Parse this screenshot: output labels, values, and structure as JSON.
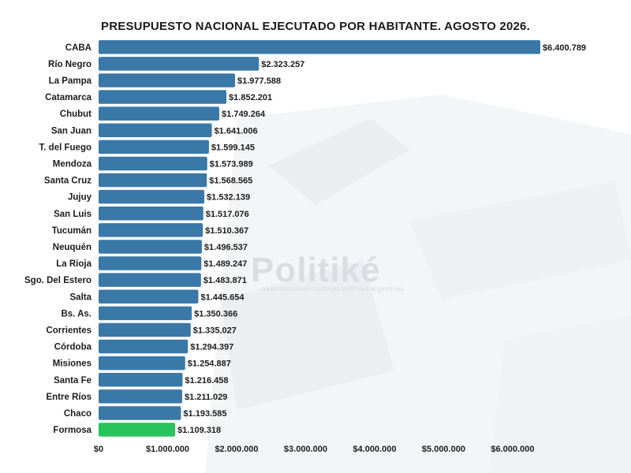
{
  "chart_data": {
    "type": "bar",
    "orientation": "horizontal",
    "title": "PRESUPUESTO NACIONAL EJECUTADO POR HABITANTE. AGOSTO 2026.",
    "xlabel": "",
    "ylabel": "",
    "xlim": [
      0,
      6400789
    ],
    "grid": false,
    "bar_color": "#3a78a8",
    "highlight_color": "#27c45c",
    "highlight_category": "Formosa",
    "categories": [
      "CABA",
      "Río Negro",
      "La Pampa",
      "Catamarca",
      "Chubut",
      "San Juan",
      "T. del Fuego",
      "Mendoza",
      "Santa Cruz",
      "Jujuy",
      "San Luis",
      "Tucumán",
      "Neuquén",
      "La Rioja",
      "Sgo. Del Estero",
      "Salta",
      "Bs. As.",
      "Corrientes",
      "Córdoba",
      "Misiones",
      "Santa Fe",
      "Entre Ríos",
      "Chaco",
      "Formosa"
    ],
    "values": [
      6400789,
      2323257,
      1977588,
      1852201,
      1749264,
      1641006,
      1599145,
      1573989,
      1568565,
      1532139,
      1517076,
      1510367,
      1496537,
      1489247,
      1483871,
      1445654,
      1350366,
      1335027,
      1294397,
      1254887,
      1216458,
      1211029,
      1193585,
      1109318
    ],
    "value_labels": [
      "$6.400.789",
      "$2.323.257",
      "$1.977.588",
      "$1.852.201",
      "$1.749.264",
      "$1.641.006",
      "$1.599.145",
      "$1.573.989",
      "$1.568.565",
      "$1.532.139",
      "$1.517.076",
      "$1.510.367",
      "$1.496.537",
      "$1.489.247",
      "$1.483.871",
      "$1.445.654",
      "$1.350.366",
      "$1.335.027",
      "$1.294.397",
      "$1.254.887",
      "$1.216.458",
      "$1.211.029",
      "$1.193.585",
      "$1.109.318"
    ],
    "x_ticks": [
      0,
      1000000,
      2000000,
      3000000,
      4000000,
      5000000,
      6000000
    ],
    "x_tick_labels": [
      "$0",
      "$1.000.000",
      "$2.000.000",
      "$3.000.000",
      "$4.000.000",
      "$5.000.000",
      "$6.000.000"
    ]
  },
  "watermark": {
    "brand": "Politiké",
    "tagline": "observatorio de políticas públicas argentinas"
  }
}
